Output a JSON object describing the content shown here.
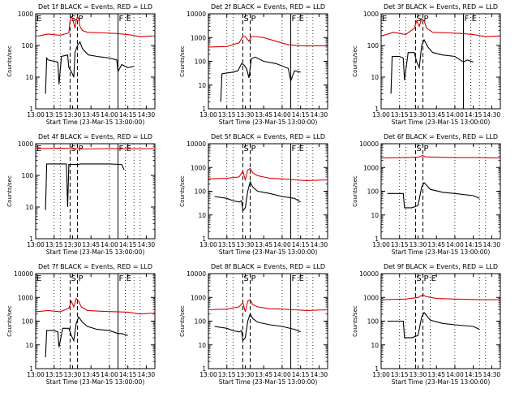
{
  "chart_data": [
    {
      "type": "line",
      "title": "Det 1f BLACK = Events, RED = LLD",
      "xlabel": "Start Time (23-Mar-15 13:00:00)",
      "ylabel": "Counts/sec",
      "yscale": "log",
      "xlim": [
        "13:00",
        "14:37"
      ],
      "ylim": [
        1,
        1000
      ],
      "x_ticks": [
        "13:00",
        "13:15",
        "13:30",
        "13:45",
        "14:00",
        "14:15",
        "14:30"
      ],
      "y_ticks": [
        "1",
        "10",
        "100",
        "1000"
      ],
      "markers": [
        {
          "label": "E",
          "time": "13:00"
        },
        {
          "label": "S",
          "time": "13:28"
        },
        {
          "label": "P",
          "time": "13:34"
        },
        {
          "label": "F",
          "time": "14:07"
        },
        {
          "label": "E",
          "time": "14:13"
        }
      ],
      "series": [
        {
          "name": "LLD",
          "color": "#dd0000",
          "x": [
            "13:02",
            "13:10",
            "13:20",
            "13:27",
            "13:28",
            "13:29",
            "13:30",
            "13:32",
            "13:33",
            "13:34",
            "13:35",
            "13:36",
            "13:38",
            "13:42",
            "13:55",
            "14:05",
            "14:15",
            "14:25",
            "14:35"
          ],
          "y": [
            200,
            230,
            210,
            250,
            600,
            800,
            700,
            350,
            600,
            800,
            700,
            400,
            300,
            260,
            250,
            240,
            220,
            190,
            200
          ]
        },
        {
          "name": "Events",
          "color": "#000000",
          "x": [
            "13:08",
            "13:09",
            "13:10",
            "13:18",
            "13:19",
            "13:21",
            "13:26",
            "13:27",
            "13:29",
            "13:31",
            "13:32",
            "13:34",
            "13:36",
            "13:38",
            "13:41",
            "13:43",
            "13:50",
            "14:00",
            "14:06",
            "14:07",
            "14:10",
            "14:15",
            "14:20"
          ],
          "y": [
            3,
            40,
            35,
            30,
            6,
            45,
            50,
            20,
            15,
            10,
            60,
            100,
            130,
            80,
            60,
            50,
            45,
            40,
            35,
            15,
            25,
            20,
            22
          ]
        }
      ]
    },
    {
      "type": "line",
      "title": "Det 2f BLACK = Events, RED = LLD",
      "xlabel": "Start Time (23-Mar-15 13:00:00)",
      "ylabel": "Counts/sec",
      "yscale": "log",
      "xlim": [
        "13:00",
        "14:37"
      ],
      "ylim": [
        1,
        10000
      ],
      "x_ticks": [
        "13:00",
        "13:15",
        "13:30",
        "13:45",
        "14:00",
        "14:15",
        "14:30"
      ],
      "y_ticks": [
        "1",
        "10",
        "100",
        "1000",
        "10000"
      ],
      "markers": [
        {
          "label": "S",
          "time": "13:28"
        },
        {
          "label": "P",
          "time": "13:34"
        },
        {
          "label": "F",
          "time": "14:07"
        },
        {
          "label": "E",
          "time": "14:13"
        }
      ],
      "series": [
        {
          "name": "LLD",
          "color": "#dd0000",
          "x": [
            "13:00",
            "13:15",
            "13:25",
            "13:28",
            "13:30",
            "13:33",
            "13:35",
            "13:38",
            "13:45",
            "13:55",
            "14:05",
            "14:15",
            "14:37"
          ],
          "y": [
            400,
            420,
            600,
            1100,
            1100,
            700,
            1100,
            1100,
            1000,
            700,
            500,
            450,
            450
          ]
        },
        {
          "name": "Events",
          "color": "#000000",
          "x": [
            "13:10",
            "13:11",
            "13:20",
            "13:24",
            "13:27",
            "13:29",
            "13:31",
            "13:33",
            "13:35",
            "13:38",
            "13:45",
            "13:55",
            "14:05",
            "14:07",
            "14:10",
            "14:15"
          ],
          "y": [
            2,
            30,
            35,
            40,
            80,
            70,
            50,
            20,
            130,
            150,
            100,
            80,
            50,
            15,
            40,
            35
          ]
        }
      ]
    },
    {
      "type": "line",
      "title": "Det 3f BLACK = Events, RED = LLD",
      "xlabel": "Start Time (23-Mar-15 13:00:00)",
      "ylabel": "Counts/sec",
      "yscale": "log",
      "xlim": [
        "13:00",
        "14:37"
      ],
      "ylim": [
        1,
        1000
      ],
      "x_ticks": [
        "13:00",
        "13:15",
        "13:30",
        "13:45",
        "14:00",
        "14:15",
        "14:30"
      ],
      "y_ticks": [
        "1",
        "10",
        "100",
        "1000"
      ],
      "markers": [
        {
          "label": "E",
          "time": "13:00"
        },
        {
          "label": "S",
          "time": "13:28"
        },
        {
          "label": "P",
          "time": "13:34"
        },
        {
          "label": "F",
          "time": "14:07"
        },
        {
          "label": "E",
          "time": "14:13"
        }
      ],
      "series": [
        {
          "name": "LLD",
          "color": "#dd0000",
          "x": [
            "13:00",
            "13:10",
            "13:20",
            "13:27",
            "13:29",
            "13:31",
            "13:33",
            "13:35",
            "13:37",
            "13:42",
            "13:55",
            "14:05",
            "14:15",
            "14:25",
            "14:37"
          ],
          "y": [
            200,
            260,
            220,
            350,
            600,
            400,
            700,
            600,
            350,
            260,
            250,
            240,
            220,
            190,
            200
          ]
        },
        {
          "name": "Events",
          "color": "#000000",
          "x": [
            "13:08",
            "13:09",
            "13:15",
            "13:18",
            "13:19",
            "13:22",
            "13:27",
            "13:29",
            "13:31",
            "13:33",
            "13:35",
            "13:38",
            "13:42",
            "13:50",
            "14:00",
            "14:07",
            "14:10",
            "14:15"
          ],
          "y": [
            3,
            45,
            45,
            40,
            8,
            60,
            60,
            30,
            20,
            100,
            150,
            90,
            60,
            50,
            45,
            30,
            35,
            30
          ]
        }
      ]
    },
    {
      "type": "line",
      "title": "Det 4f BLACK = Events, RED = LLD",
      "xlabel": "Start Time (23-Mar-15 13:00:00)",
      "ylabel": "Counts/sec",
      "yscale": "log",
      "xlim": [
        "13:00",
        "14:37"
      ],
      "ylim": [
        1,
        1000
      ],
      "x_ticks": [
        "13:00",
        "13:15",
        "13:30",
        "13:45",
        "14:00",
        "14:15",
        "14:30"
      ],
      "y_ticks": [
        "1",
        "10",
        "100",
        "1000"
      ],
      "markers": [
        {
          "label": "E",
          "time": "13:00"
        },
        {
          "label": "S",
          "time": "13:28"
        },
        {
          "label": "P",
          "time": "13:34"
        },
        {
          "label": "F",
          "time": "14:07"
        },
        {
          "label": "E",
          "time": "14:13"
        }
      ],
      "series": [
        {
          "name": "LLD",
          "color": "#dd0000",
          "x": [
            "13:00",
            "13:20",
            "13:40",
            "14:00",
            "14:20",
            "14:37"
          ],
          "y": [
            700,
            720,
            680,
            700,
            690,
            700
          ]
        },
        {
          "name": "Events",
          "color": "#000000",
          "x": [
            "13:08",
            "13:09",
            "13:25",
            "13:26",
            "13:27",
            "13:35",
            "13:36",
            "14:00",
            "14:10",
            "14:12"
          ],
          "y": [
            8,
            230,
            230,
            10,
            220,
            220,
            230,
            230,
            220,
            150
          ]
        }
      ]
    },
    {
      "type": "line",
      "title": "Det 5f BLACK = Events, RED = LLD",
      "xlabel": "Start Time (23-Mar-15 13:00:00)",
      "ylabel": "Counts/sec",
      "yscale": "log",
      "xlim": [
        "13:00",
        "14:37"
      ],
      "ylim": [
        1,
        10000
      ],
      "x_ticks": [
        "13:00",
        "13:15",
        "13:30",
        "13:45",
        "14:00",
        "14:15",
        "14:30"
      ],
      "y_ticks": [
        "1",
        "10",
        "100",
        "1000",
        "10000"
      ],
      "markers": [
        {
          "label": "S",
          "time": "13:28"
        },
        {
          "label": "P",
          "time": "13:34"
        },
        {
          "label": "F",
          "time": "14:07"
        },
        {
          "label": "E",
          "time": "14:13"
        }
      ],
      "series": [
        {
          "name": "LLD",
          "color": "#dd0000",
          "x": [
            "13:00",
            "13:15",
            "13:25",
            "13:28",
            "13:30",
            "13:32",
            "13:34",
            "13:36",
            "13:40",
            "13:50",
            "14:00",
            "14:10",
            "14:20",
            "14:37"
          ],
          "y": [
            330,
            350,
            400,
            700,
            300,
            800,
            900,
            600,
            450,
            350,
            330,
            300,
            280,
            300
          ]
        },
        {
          "name": "Events",
          "color": "#000000",
          "x": [
            "13:05",
            "13:15",
            "13:20",
            "13:25",
            "13:27",
            "13:28",
            "13:30",
            "13:32",
            "13:34",
            "13:36",
            "13:40",
            "13:50",
            "14:00",
            "14:10",
            "14:15"
          ],
          "y": [
            60,
            50,
            40,
            35,
            40,
            15,
            20,
            100,
            250,
            150,
            100,
            80,
            60,
            50,
            35
          ]
        }
      ]
    },
    {
      "type": "line",
      "title": "Det 6f BLACK = Events, RED = LLD",
      "xlabel": "Start Time (23-Mar-15 13:00:00)",
      "ylabel": "Counts/sec",
      "yscale": "log",
      "xlim": [
        "13:00",
        "14:37"
      ],
      "ylim": [
        1,
        10000
      ],
      "x_ticks": [
        "13:00",
        "13:15",
        "13:30",
        "13:45",
        "14:00",
        "14:15",
        "14:30"
      ],
      "y_ticks": [
        "1",
        "10",
        "100",
        "1000",
        "10000"
      ],
      "markers": [
        {
          "label": "S",
          "time": "13:28"
        },
        {
          "label": "P",
          "time": "13:34"
        }
      ],
      "series": [
        {
          "name": "LLD",
          "color": "#dd0000",
          "x": [
            "13:00",
            "13:20",
            "13:30",
            "13:34",
            "13:36",
            "13:45",
            "14:00",
            "14:20",
            "14:37"
          ],
          "y": [
            2500,
            2600,
            2700,
            3200,
            2800,
            2700,
            2600,
            2600,
            2500
          ]
        },
        {
          "name": "Events",
          "color": "#000000",
          "x": [
            "13:05",
            "13:18",
            "13:19",
            "13:25",
            "13:30",
            "13:33",
            "13:35",
            "13:40",
            "13:50",
            "14:00",
            "14:15",
            "14:20"
          ],
          "y": [
            80,
            80,
            20,
            20,
            25,
            150,
            230,
            120,
            90,
            80,
            65,
            50
          ]
        }
      ]
    },
    {
      "type": "line",
      "title": "Det 7f BLACK = Events, RED = LLD",
      "xlabel": "Start Time (23-Mar-15 13:00:00)",
      "ylabel": "Counts/sec",
      "yscale": "log",
      "xlim": [
        "13:00",
        "14:37"
      ],
      "ylim": [
        1,
        10000
      ],
      "x_ticks": [
        "13:00",
        "13:15",
        "13:30",
        "13:45",
        "14:00",
        "14:15",
        "14:30"
      ],
      "y_ticks": [
        "1",
        "10",
        "100",
        "1000",
        "10000"
      ],
      "markers": [
        {
          "label": "E",
          "time": "13:00"
        },
        {
          "label": "S",
          "time": "13:28"
        },
        {
          "label": "P",
          "time": "13:34"
        },
        {
          "label": "F",
          "time": "14:07"
        },
        {
          "label": "E",
          "time": "14:13"
        }
      ],
      "series": [
        {
          "name": "LLD",
          "color": "#dd0000",
          "x": [
            "13:00",
            "13:10",
            "13:20",
            "13:27",
            "13:29",
            "13:31",
            "13:33",
            "13:35",
            "13:37",
            "13:42",
            "13:55",
            "14:05",
            "14:15",
            "14:25",
            "14:37"
          ],
          "y": [
            250,
            280,
            250,
            350,
            700,
            400,
            900,
            700,
            400,
            280,
            260,
            250,
            240,
            200,
            220
          ]
        },
        {
          "name": "Events",
          "color": "#000000",
          "x": [
            "13:08",
            "13:09",
            "13:15",
            "13:18",
            "13:19",
            "13:22",
            "13:27",
            "13:29",
            "13:31",
            "13:33",
            "13:35",
            "13:38",
            "13:42",
            "13:50",
            "14:00",
            "14:07",
            "14:10",
            "14:15"
          ],
          "y": [
            3,
            40,
            40,
            35,
            8,
            50,
            50,
            25,
            15,
            80,
            150,
            90,
            60,
            45,
            40,
            30,
            30,
            25
          ]
        }
      ]
    },
    {
      "type": "line",
      "title": "Det 8f BLACK = Events, RED = LLD",
      "xlabel": "Start Time (23-Mar-15 13:00:00)",
      "ylabel": "Counts/sec",
      "yscale": "log",
      "xlim": [
        "13:00",
        "14:37"
      ],
      "ylim": [
        1,
        10000
      ],
      "x_ticks": [
        "13:00",
        "13:15",
        "13:30",
        "13:45",
        "14:00",
        "14:15",
        "14:30"
      ],
      "y_ticks": [
        "1",
        "10",
        "100",
        "1000",
        "10000"
      ],
      "markers": [
        {
          "label": "S",
          "time": "13:28"
        },
        {
          "label": "P",
          "time": "13:34"
        },
        {
          "label": "F",
          "time": "14:07"
        },
        {
          "label": "E",
          "time": "14:13"
        }
      ],
      "series": [
        {
          "name": "LLD",
          "color": "#dd0000",
          "x": [
            "13:00",
            "13:15",
            "13:25",
            "13:28",
            "13:30",
            "13:32",
            "13:34",
            "13:36",
            "13:40",
            "13:50",
            "14:00",
            "14:10",
            "14:20",
            "14:37"
          ],
          "y": [
            300,
            320,
            400,
            600,
            250,
            700,
            800,
            500,
            400,
            330,
            320,
            300,
            280,
            300
          ]
        },
        {
          "name": "Events",
          "color": "#000000",
          "x": [
            "13:05",
            "13:15",
            "13:20",
            "13:25",
            "13:27",
            "13:28",
            "13:30",
            "13:32",
            "13:34",
            "13:36",
            "13:40",
            "13:50",
            "14:00",
            "14:10",
            "14:15"
          ],
          "y": [
            60,
            50,
            40,
            35,
            40,
            15,
            20,
            100,
            200,
            130,
            90,
            70,
            60,
            45,
            35
          ]
        }
      ]
    },
    {
      "type": "line",
      "title": "Det 9f BLACK = Events, RED = LLD",
      "xlabel": "Start Time (23-Mar-15 13:00:00)",
      "ylabel": "Counts/sec",
      "yscale": "log",
      "xlim": [
        "13:00",
        "14:37"
      ],
      "ylim": [
        1,
        10000
      ],
      "x_ticks": [
        "13:00",
        "13:15",
        "13:30",
        "13:45",
        "14:00",
        "14:15",
        "14:30"
      ],
      "y_ticks": [
        "1",
        "10",
        "100",
        "1000",
        "10000"
      ],
      "markers": [
        {
          "label": "S",
          "time": "13:28"
        },
        {
          "label": "P",
          "time": "13:34"
        },
        {
          "label": "E",
          "time": "13:40"
        }
      ],
      "series": [
        {
          "name": "LLD",
          "color": "#dd0000",
          "x": [
            "13:00",
            "13:20",
            "13:30",
            "13:34",
            "13:36",
            "13:45",
            "14:00",
            "14:20",
            "14:37"
          ],
          "y": [
            800,
            850,
            1000,
            1300,
            1100,
            900,
            850,
            800,
            800
          ]
        },
        {
          "name": "Events",
          "color": "#000000",
          "x": [
            "13:05",
            "13:18",
            "13:19",
            "13:25",
            "13:30",
            "13:33",
            "13:35",
            "13:40",
            "13:50",
            "14:00",
            "14:15",
            "14:20"
          ],
          "y": [
            100,
            100,
            20,
            20,
            25,
            150,
            230,
            110,
            80,
            70,
            60,
            45
          ]
        }
      ]
    }
  ]
}
